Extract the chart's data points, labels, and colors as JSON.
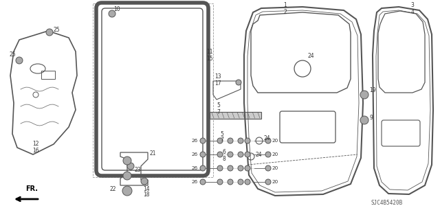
{
  "bg_color": "#ffffff",
  "lc": "#555555",
  "tc": "#333333",
  "code": "SJC4B5420B",
  "figsize": [
    6.4,
    3.19
  ],
  "dpi": 100
}
